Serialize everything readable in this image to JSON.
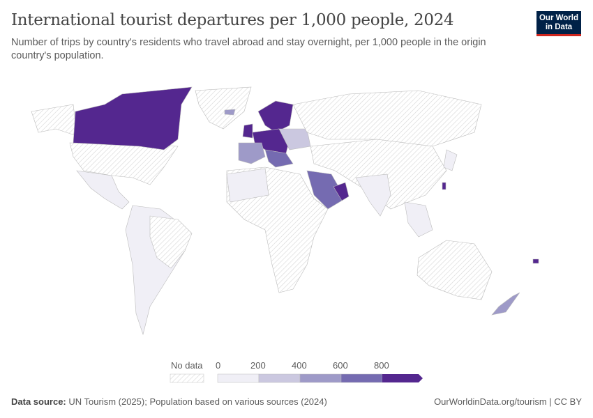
{
  "header": {
    "title": "International tourist departures per 1,000 people, 2024",
    "subtitle": "Number of trips by country's residents who travel abroad and stay overnight, per 1,000 people in the origin country's population.",
    "logo_text": "Our World in Data"
  },
  "legend": {
    "no_data_label": "No data",
    "ticks": [
      "0",
      "200",
      "400",
      "600",
      "800"
    ],
    "bins": [
      {
        "range": "0-200",
        "color": "#f0eff6"
      },
      {
        "range": "200-400",
        "color": "#cbc8e0"
      },
      {
        "range": "400-600",
        "color": "#9e9ac8"
      },
      {
        "range": "600-800",
        "color": "#756bb1"
      },
      {
        "range": ">800",
        "color": "#54278f"
      }
    ],
    "no_data_color": "#e9e9e9"
  },
  "footer": {
    "source_label": "Data source:",
    "source_text": "UN Tourism (2025); Population based on various sources (2024)",
    "url": "OurWorldinData.org/tourism",
    "license": "CC BY"
  }
}
